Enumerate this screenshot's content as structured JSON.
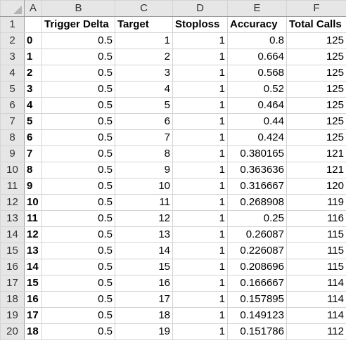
{
  "columns": [
    "A",
    "B",
    "C",
    "D",
    "E",
    "F"
  ],
  "header_row": {
    "row_number": "1",
    "cells": [
      "",
      "Trigger Delta",
      "Target",
      "Stoploss",
      "Accuracy",
      "Total Calls"
    ]
  },
  "rows": [
    {
      "row_number": "2",
      "cells": [
        "0",
        "0.5",
        "1",
        "1",
        "0.8",
        "125"
      ]
    },
    {
      "row_number": "3",
      "cells": [
        "1",
        "0.5",
        "2",
        "1",
        "0.664",
        "125"
      ]
    },
    {
      "row_number": "4",
      "cells": [
        "2",
        "0.5",
        "3",
        "1",
        "0.568",
        "125"
      ]
    },
    {
      "row_number": "5",
      "cells": [
        "3",
        "0.5",
        "4",
        "1",
        "0.52",
        "125"
      ]
    },
    {
      "row_number": "6",
      "cells": [
        "4",
        "0.5",
        "5",
        "1",
        "0.464",
        "125"
      ]
    },
    {
      "row_number": "7",
      "cells": [
        "5",
        "0.5",
        "6",
        "1",
        "0.44",
        "125"
      ]
    },
    {
      "row_number": "8",
      "cells": [
        "6",
        "0.5",
        "7",
        "1",
        "0.424",
        "125"
      ]
    },
    {
      "row_number": "9",
      "cells": [
        "7",
        "0.5",
        "8",
        "1",
        "0.380165",
        "121"
      ]
    },
    {
      "row_number": "10",
      "cells": [
        "8",
        "0.5",
        "9",
        "1",
        "0.363636",
        "121"
      ]
    },
    {
      "row_number": "11",
      "cells": [
        "9",
        "0.5",
        "10",
        "1",
        "0.316667",
        "120"
      ]
    },
    {
      "row_number": "12",
      "cells": [
        "10",
        "0.5",
        "11",
        "1",
        "0.268908",
        "119"
      ]
    },
    {
      "row_number": "13",
      "cells": [
        "11",
        "0.5",
        "12",
        "1",
        "0.25",
        "116"
      ]
    },
    {
      "row_number": "14",
      "cells": [
        "12",
        "0.5",
        "13",
        "1",
        "0.26087",
        "115"
      ]
    },
    {
      "row_number": "15",
      "cells": [
        "13",
        "0.5",
        "14",
        "1",
        "0.226087",
        "115"
      ]
    },
    {
      "row_number": "16",
      "cells": [
        "14",
        "0.5",
        "15",
        "1",
        "0.208696",
        "115"
      ]
    },
    {
      "row_number": "17",
      "cells": [
        "15",
        "0.5",
        "16",
        "1",
        "0.166667",
        "114"
      ]
    },
    {
      "row_number": "18",
      "cells": [
        "16",
        "0.5",
        "17",
        "1",
        "0.157895",
        "114"
      ]
    },
    {
      "row_number": "19",
      "cells": [
        "17",
        "0.5",
        "18",
        "1",
        "0.149123",
        "114"
      ]
    },
    {
      "row_number": "20",
      "cells": [
        "18",
        "0.5",
        "19",
        "1",
        "0.151786",
        "112"
      ]
    }
  ]
}
